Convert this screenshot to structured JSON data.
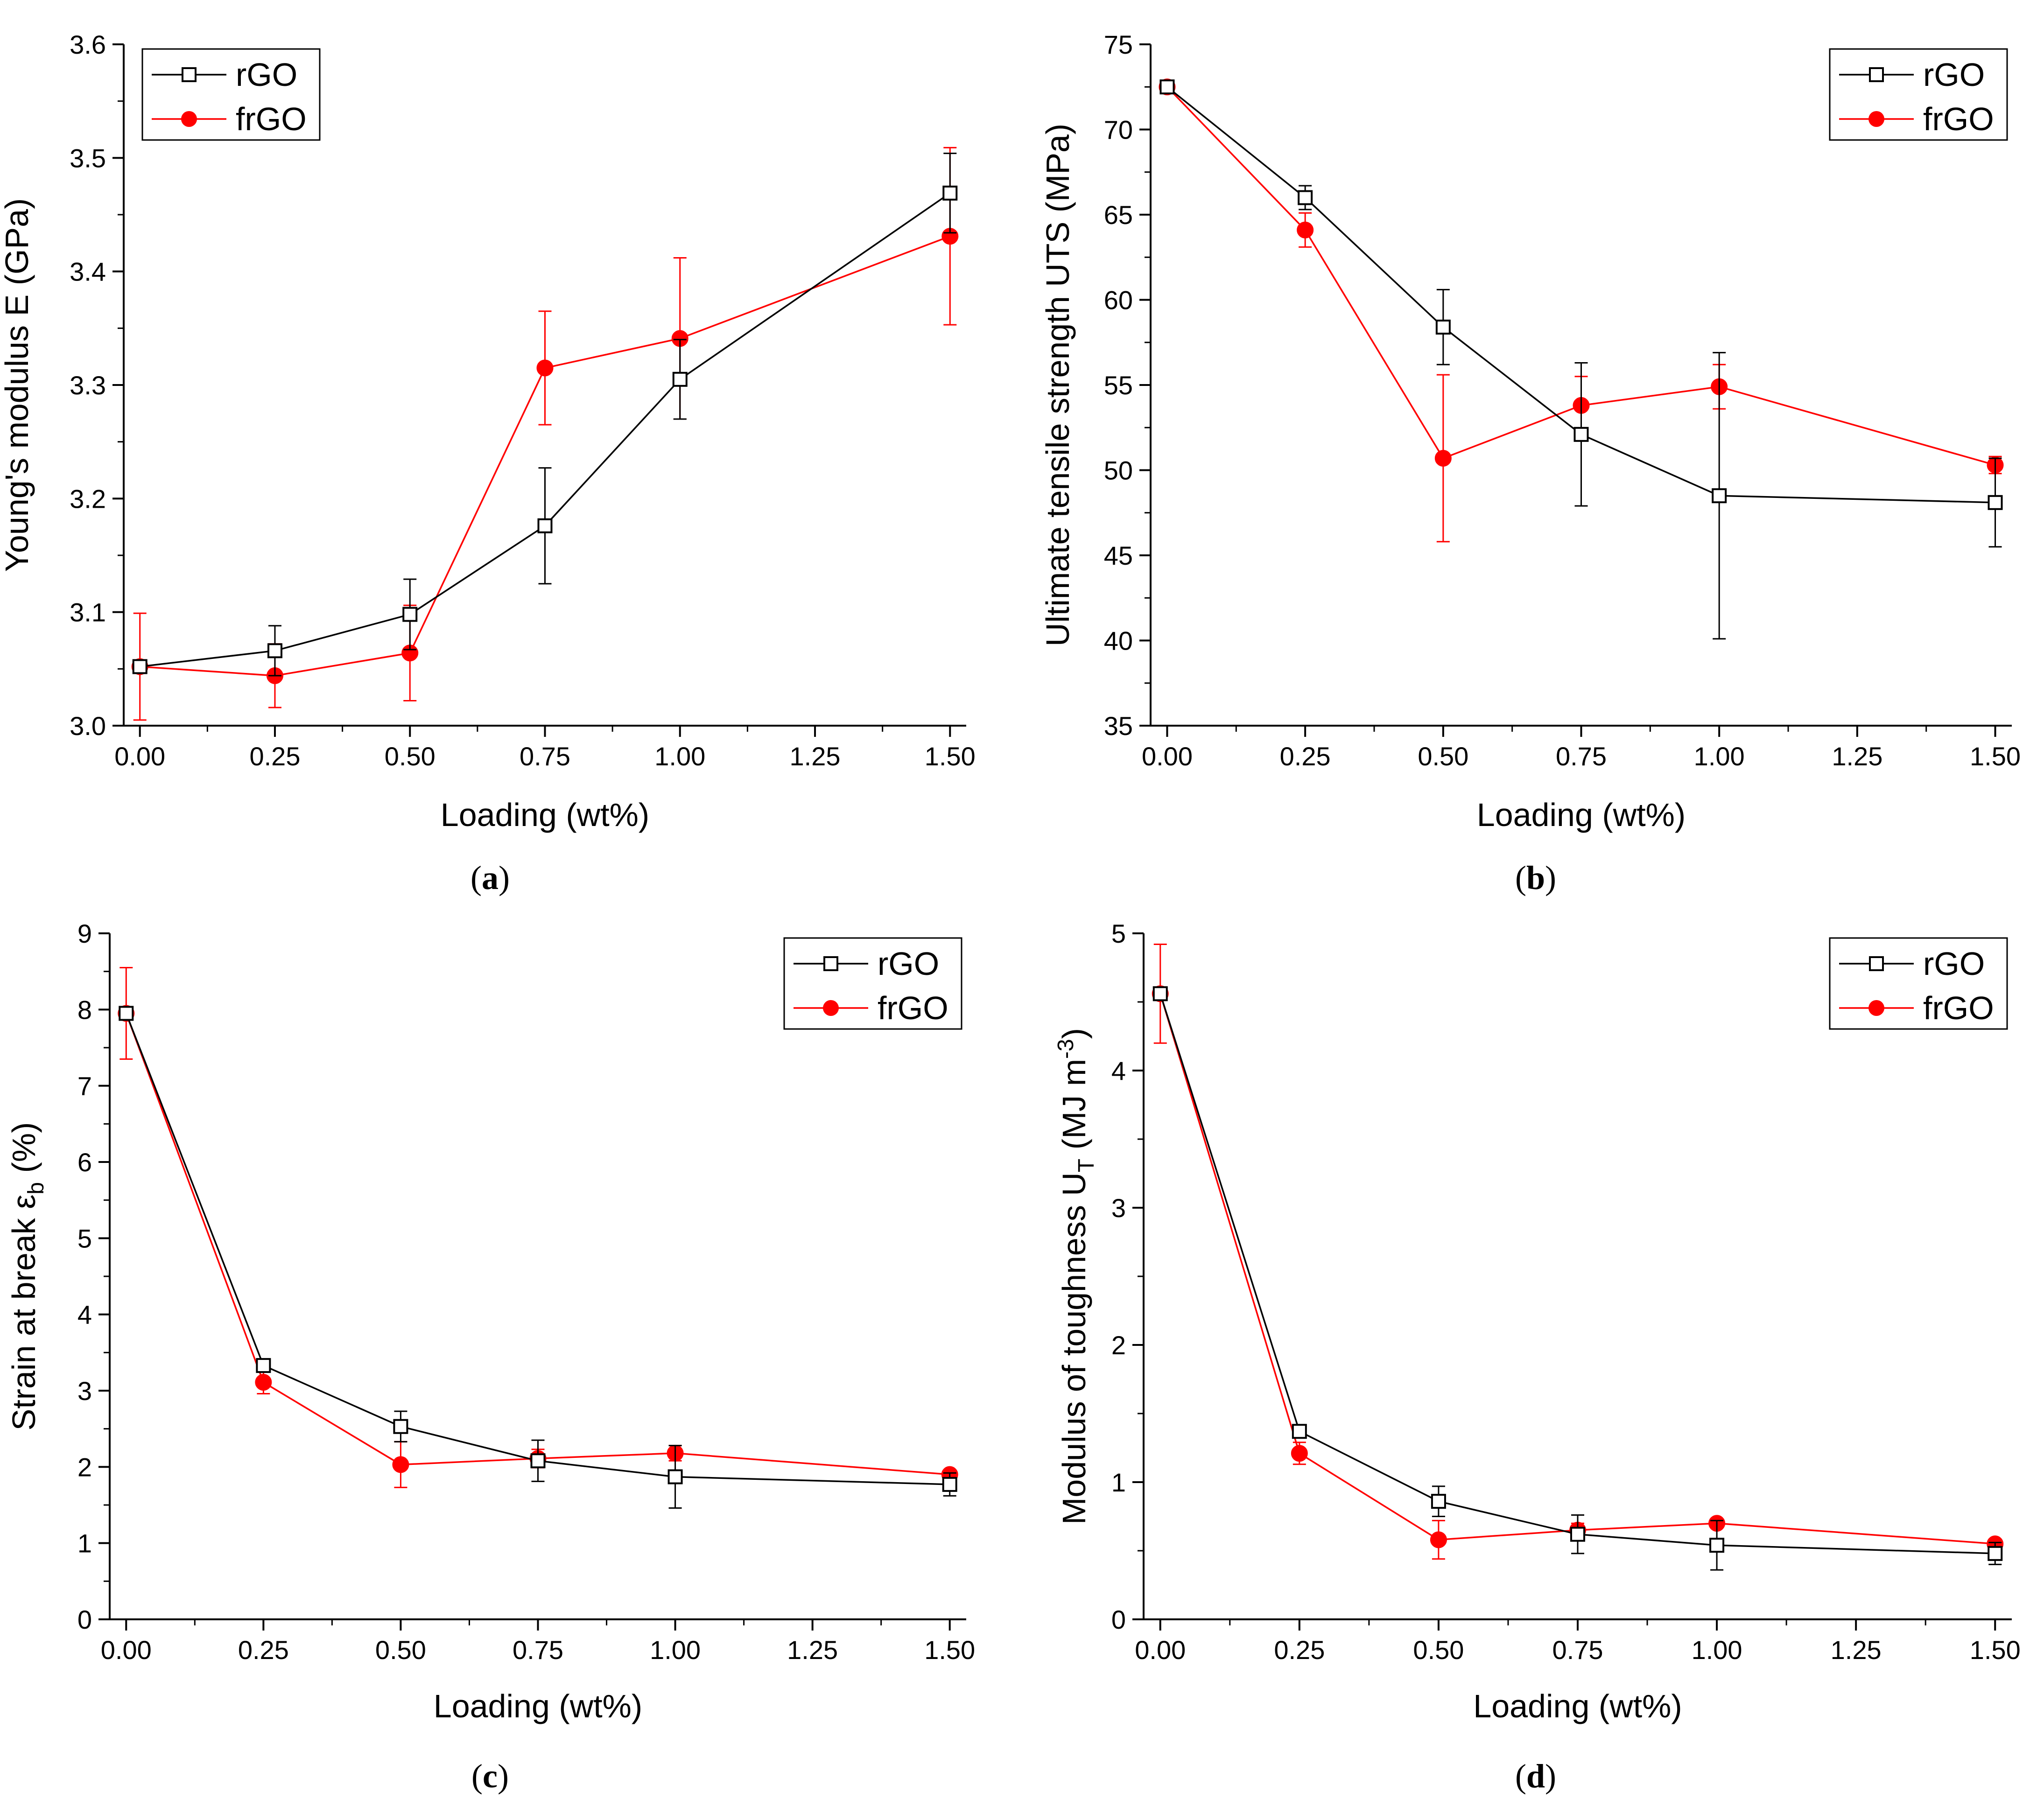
{
  "chart_data": [
    {
      "type": "line",
      "caption": "(a)",
      "caption_letter": "a",
      "ylabel": "Young's modulus E (GPa)",
      "xlabel": "Loading (wt%)",
      "xlim": [
        -0.03,
        1.53
      ],
      "ylim": [
        3.0,
        3.6
      ],
      "xticks": [
        0,
        0.25,
        0.5,
        0.75,
        1.0,
        1.25,
        1.5
      ],
      "xtick_labels": [
        "0.00",
        "0.25",
        "0.50",
        "0.75",
        "1.00",
        "1.25",
        "1.50"
      ],
      "yticks": [
        3.0,
        3.1,
        3.2,
        3.3,
        3.4,
        3.5,
        3.6
      ],
      "ytick_labels": [
        "3.0",
        "3.1",
        "3.2",
        "3.3",
        "3.4",
        "3.5",
        "3.6"
      ],
      "legend_position": "top-left",
      "x": [
        0,
        0.25,
        0.5,
        0.75,
        1.0,
        1.5
      ],
      "series": [
        {
          "name": "rGO",
          "marker": "open-square",
          "color": "#000000",
          "values": [
            3.052,
            3.066,
            3.098,
            3.176,
            3.305,
            3.469
          ],
          "errors": [
            0.0,
            0.022,
            0.031,
            0.051,
            0.035,
            0.035
          ]
        },
        {
          "name": "frGO",
          "marker": "filled-circle",
          "color": "#ff0000",
          "values": [
            3.052,
            3.044,
            3.064,
            3.315,
            3.341,
            3.431
          ],
          "errors": [
            0.047,
            0.028,
            0.042,
            0.05,
            0.071,
            0.078
          ]
        }
      ]
    },
    {
      "type": "line",
      "caption": "(b)",
      "caption_letter": "b",
      "ylabel": "Ultimate tensile strength UTS (MPa)",
      "xlabel": "Loading (wt%)",
      "xlim": [
        -0.03,
        1.53
      ],
      "ylim": [
        35,
        75
      ],
      "xticks": [
        0,
        0.25,
        0.5,
        0.75,
        1.0,
        1.25,
        1.5
      ],
      "xtick_labels": [
        "0.00",
        "0.25",
        "0.50",
        "0.75",
        "1.00",
        "1.25",
        "1.50"
      ],
      "yticks": [
        35,
        40,
        45,
        50,
        55,
        60,
        65,
        70,
        75
      ],
      "ytick_labels": [
        "35",
        "40",
        "45",
        "50",
        "55",
        "60",
        "65",
        "70",
        "75"
      ],
      "legend_position": "top-right",
      "x": [
        0,
        0.25,
        0.5,
        0.75,
        1.0,
        1.5
      ],
      "series": [
        {
          "name": "rGO",
          "marker": "open-square",
          "color": "#000000",
          "values": [
            72.5,
            66.0,
            58.4,
            52.1,
            48.5,
            48.1
          ],
          "errors": [
            0.0,
            0.7,
            2.2,
            4.2,
            8.4,
            2.6
          ]
        },
        {
          "name": "frGO",
          "marker": "filled-circle",
          "color": "#ff0000",
          "values": [
            72.5,
            64.1,
            50.7,
            53.8,
            54.9,
            50.3
          ],
          "errors": [
            0.3,
            1.0,
            4.9,
            1.7,
            1.3,
            0.5
          ]
        }
      ]
    },
    {
      "type": "line",
      "caption": "(c)",
      "caption_letter": "c",
      "ylabel": "Strain at break ε",
      "ylabel_sub": "b",
      "ylabel_unit": " (%)",
      "xlabel": "Loading (wt%)",
      "xlim": [
        -0.03,
        1.53
      ],
      "ylim": [
        0,
        9
      ],
      "xticks": [
        0,
        0.25,
        0.5,
        0.75,
        1.0,
        1.25,
        1.5
      ],
      "xtick_labels": [
        "0.00",
        "0.25",
        "0.50",
        "0.75",
        "1.00",
        "1.25",
        "1.50"
      ],
      "yticks": [
        0,
        1,
        2,
        3,
        4,
        5,
        6,
        7,
        8,
        9
      ],
      "ytick_labels": [
        "0",
        "1",
        "2",
        "3",
        "4",
        "5",
        "6",
        "7",
        "8",
        "9"
      ],
      "legend_position": "top-right",
      "x": [
        0,
        0.25,
        0.5,
        0.75,
        1.0,
        1.5
      ],
      "series": [
        {
          "name": "rGO",
          "marker": "open-square",
          "color": "#000000",
          "values": [
            7.95,
            3.33,
            2.53,
            2.08,
            1.87,
            1.77
          ],
          "errors": [
            0.0,
            0.05,
            0.2,
            0.27,
            0.41,
            0.15
          ]
        },
        {
          "name": "frGO",
          "marker": "filled-circle",
          "color": "#ff0000",
          "values": [
            7.95,
            3.11,
            2.03,
            2.11,
            2.18,
            1.9
          ],
          "errors": [
            0.6,
            0.15,
            0.3,
            0.12,
            0.1,
            0.05
          ]
        }
      ]
    },
    {
      "type": "line",
      "caption": "(d)",
      "caption_letter": "d",
      "ylabel": "Modulus of toughness U",
      "ylabel_sub": "T",
      "ylabel_unit": " (MJ m",
      "ylabel_sup": "-3",
      "ylabel_end": ")",
      "xlabel": "Loading (wt%)",
      "xlim": [
        -0.03,
        1.53
      ],
      "ylim": [
        0,
        5
      ],
      "xticks": [
        0,
        0.25,
        0.5,
        0.75,
        1.0,
        1.25,
        1.5
      ],
      "xtick_labels": [
        "0.00",
        "0.25",
        "0.50",
        "0.75",
        "1.00",
        "1.25",
        "1.50"
      ],
      "yticks": [
        0,
        1,
        2,
        3,
        4,
        5
      ],
      "ytick_labels": [
        "0",
        "1",
        "2",
        "3",
        "4",
        "5"
      ],
      "legend_position": "top-right",
      "x": [
        0,
        0.25,
        0.5,
        0.75,
        1.0,
        1.5
      ],
      "series": [
        {
          "name": "rGO",
          "marker": "open-square",
          "color": "#000000",
          "values": [
            4.56,
            1.37,
            0.86,
            0.62,
            0.54,
            0.48
          ],
          "errors": [
            0.0,
            0.04,
            0.11,
            0.14,
            0.18,
            0.08
          ]
        },
        {
          "name": "frGO",
          "marker": "filled-circle",
          "color": "#ff0000",
          "values": [
            4.56,
            1.21,
            0.58,
            0.65,
            0.7,
            0.55
          ],
          "errors": [
            0.36,
            0.08,
            0.14,
            0.05,
            0.03,
            0.03
          ]
        }
      ]
    }
  ]
}
